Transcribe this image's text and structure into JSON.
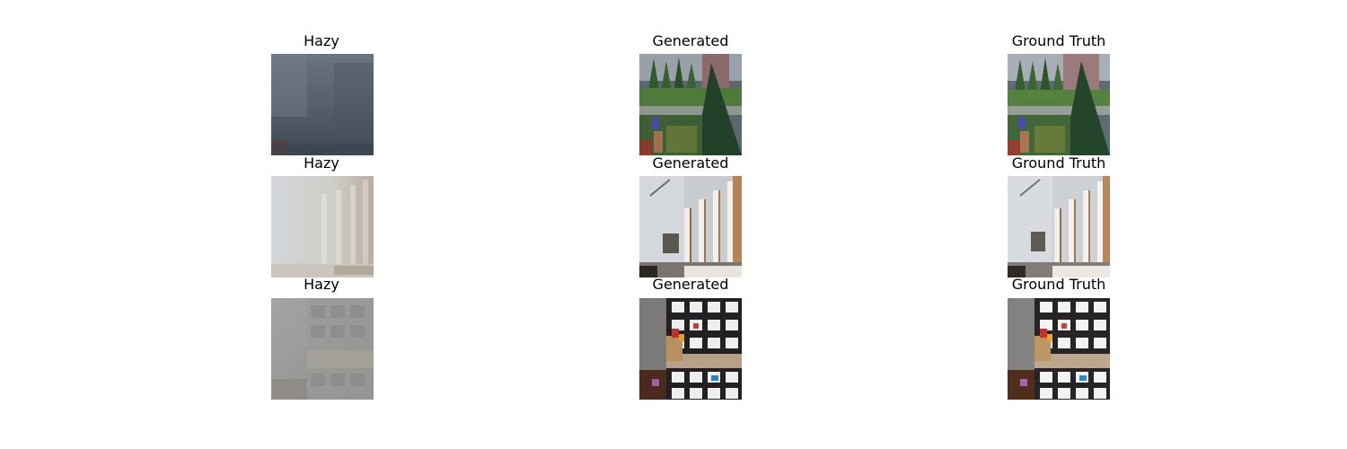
{
  "figure": {
    "rows": [
      {
        "scene": "garden",
        "columns": [
          {
            "title": "Hazy"
          },
          {
            "title": "Generated"
          },
          {
            "title": "Ground Truth"
          }
        ]
      },
      {
        "scene": "stairs",
        "columns": [
          {
            "title": "Hazy"
          },
          {
            "title": "Generated"
          },
          {
            "title": "Ground Truth"
          }
        ]
      },
      {
        "scene": "shelves",
        "columns": [
          {
            "title": "Hazy"
          },
          {
            "title": "Generated"
          },
          {
            "title": "Ground Truth"
          }
        ]
      }
    ]
  }
}
